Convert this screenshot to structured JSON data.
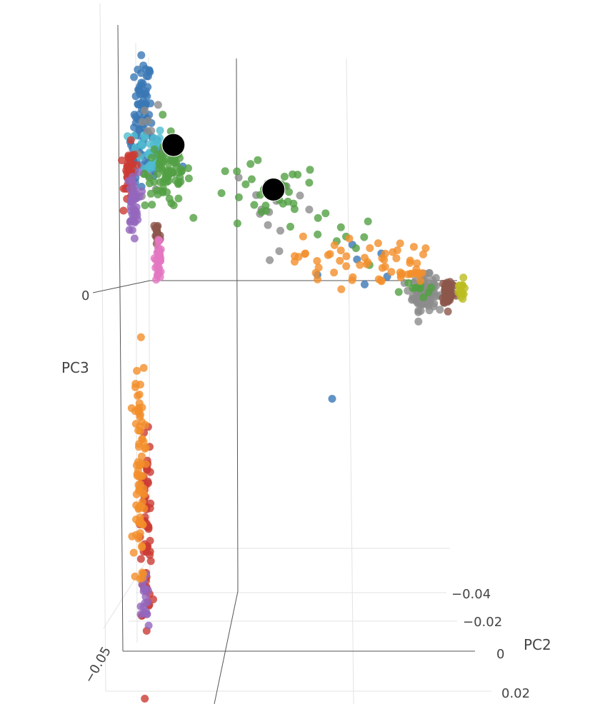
{
  "chart_data": {
    "type": "scatter",
    "subtype": "3d-scatter",
    "title": "",
    "axes": {
      "pc2": {
        "label": "PC2",
        "ticks": [
          "−0.04",
          "−0.02",
          "0",
          "0.02"
        ]
      },
      "pc3": {
        "label": "PC3",
        "ticks": [
          "0",
          "−0.05"
        ]
      }
    },
    "xlim": [
      -0.06,
      0.06
    ],
    "ylim": [
      -0.052,
      0.036
    ],
    "series": [
      {
        "name": "blue",
        "color": "#3a78b5",
        "clusters": [
          [
            -0.0525,
            0.0255,
            0.0015,
            0.004,
            70
          ],
          [
            -0.047,
            0.019,
            0.004,
            0.002,
            15
          ],
          [
            -0.056,
            0.017,
            0.0008,
            0.002,
            15
          ],
          [
            0.02,
            0.004,
            0.01,
            0.002,
            6
          ],
          [
            0.01375,
            -0.015,
            0,
            0,
            1
          ]
        ]
      },
      {
        "name": "cyan",
        "color": "#4fbcd0",
        "clusters": [
          [
            -0.051,
            0.02,
            0.003,
            0.002,
            35
          ]
        ]
      },
      {
        "name": "grey",
        "color": "#8c8c8c",
        "clusters": [
          [
            0.046,
            0.0,
            0.002,
            0.0012,
            130
          ],
          [
            -0.005,
            0.0125,
            0.008,
            0.003,
            14
          ],
          [
            -0.05,
            0.02,
            0.003,
            0.003,
            12
          ]
        ]
      },
      {
        "name": "green",
        "color": "#52a044",
        "clusters": [
          [
            -0.0438,
            0.017,
            0.004,
            0.0025,
            80
          ],
          [
            -0.01,
            0.0135,
            0.01,
            0.0025,
            30
          ],
          [
            0.015,
            0.007,
            0.008,
            0.002,
            10
          ],
          [
            0.045,
            0.001,
            0.003,
            0.001,
            10
          ]
        ]
      },
      {
        "name": "red",
        "color": "#cc3b33",
        "clusters": [
          [
            -0.057,
            0.0167,
            0.001,
            0.002,
            40
          ],
          [
            -0.05125,
            -0.0333,
            0.001,
            0.006,
            70
          ]
        ]
      },
      {
        "name": "purple",
        "color": "#9467bd",
        "clusters": [
          [
            -0.056,
            0.0126,
            0.001,
            0.0022,
            45
          ],
          [
            -0.0518,
            -0.0445,
            0.0007,
            0.0028,
            20
          ]
        ]
      },
      {
        "name": "brown",
        "color": "#8c564b",
        "clusters": [
          [
            -0.0475,
            0.0081,
            0.0006,
            0.0012,
            22
          ],
          [
            0.0545,
            0.0002,
            0.0012,
            0.001,
            45
          ]
        ]
      },
      {
        "name": "pink",
        "color": "#e377c2",
        "clusters": [
          [
            -0.047,
            0.0045,
            0.0005,
            0.0016,
            35
          ]
        ]
      },
      {
        "name": "orange",
        "color": "#f28e2b",
        "clusters": [
          [
            -0.0538,
            -0.025,
            0.001,
            0.008,
            80
          ],
          [
            0.022,
            0.0045,
            0.011,
            0.0018,
            45
          ],
          [
            0.04,
            0.003,
            0.004,
            0.0012,
            15
          ]
        ]
      },
      {
        "name": "olive",
        "color": "#bcbd22",
        "clusters": [
          [
            0.059,
            0.0,
            0.0008,
            0.001,
            15
          ]
        ]
      }
    ],
    "highlights": [
      {
        "name": "centroid-1",
        "color": "#000000",
        "x": -0.0418,
        "y": 0.0209
      },
      {
        "name": "centroid-2",
        "color": "#000000",
        "x": -0.0068,
        "y": 0.0146
      }
    ]
  }
}
